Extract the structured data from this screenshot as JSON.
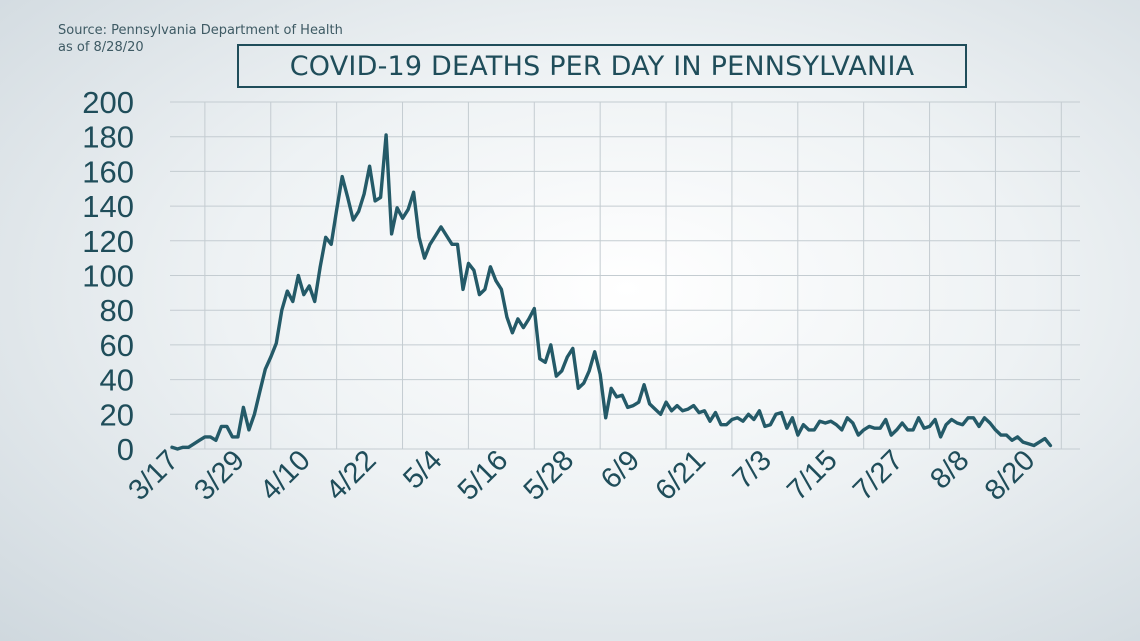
{
  "source": {
    "line1": "Source: Pennsylvania Department of Health",
    "line2": "as of 8/28/20"
  },
  "colors": {
    "line": "#245a68",
    "text": "#1f4d5a",
    "grid": "#c4ccd1"
  },
  "chart_data": {
    "type": "line",
    "title": "COVID-19 DEATHS PER DAY IN PENNSYLVANIA",
    "xlabel": "",
    "ylabel": "",
    "ylim": [
      0,
      200
    ],
    "yticks": [
      "0",
      "20",
      "40",
      "60",
      "80",
      "100",
      "120",
      "140",
      "160",
      "180",
      "200"
    ],
    "xticks": [
      "3/17",
      "3/29",
      "4/10",
      "4/22",
      "5/4",
      "5/16",
      "5/28",
      "6/9",
      "6/21",
      "7/3",
      "7/15",
      "7/27",
      "8/8",
      "8/20"
    ],
    "grid": true,
    "series": [
      {
        "name": "Deaths per day",
        "values": [
          1,
          0,
          1,
          1,
          3,
          5,
          7,
          7,
          5,
          13,
          13,
          7,
          7,
          24,
          11,
          20,
          33,
          46,
          53,
          61,
          80,
          91,
          85,
          100,
          89,
          94,
          85,
          105,
          122,
          118,
          138,
          157,
          145,
          132,
          137,
          147,
          163,
          143,
          145,
          181,
          124,
          139,
          133,
          138,
          148,
          122,
          110,
          118,
          123,
          128,
          123,
          118,
          118,
          92,
          107,
          103,
          89,
          92,
          105,
          97,
          92,
          76,
          67,
          75,
          70,
          75,
          81,
          52,
          50,
          60,
          42,
          45,
          53,
          58,
          35,
          38,
          45,
          56,
          43,
          18,
          35,
          30,
          31,
          24,
          25,
          27,
          37,
          26,
          23,
          20,
          27,
          22,
          25,
          22,
          23,
          25,
          21,
          22,
          16,
          21,
          14,
          14,
          17,
          18,
          16,
          20,
          17,
          22,
          13,
          14,
          20,
          21,
          12,
          18,
          8,
          14,
          11,
          11,
          16,
          15,
          16,
          14,
          11,
          18,
          15,
          8,
          11,
          13,
          12,
          12,
          17,
          8,
          11,
          15,
          11,
          11,
          18,
          12,
          13,
          17,
          7,
          14,
          17,
          15,
          14,
          18,
          18,
          13,
          18,
          15,
          11,
          8,
          8,
          5,
          7,
          4,
          3,
          2,
          4,
          6,
          2
        ]
      }
    ]
  }
}
